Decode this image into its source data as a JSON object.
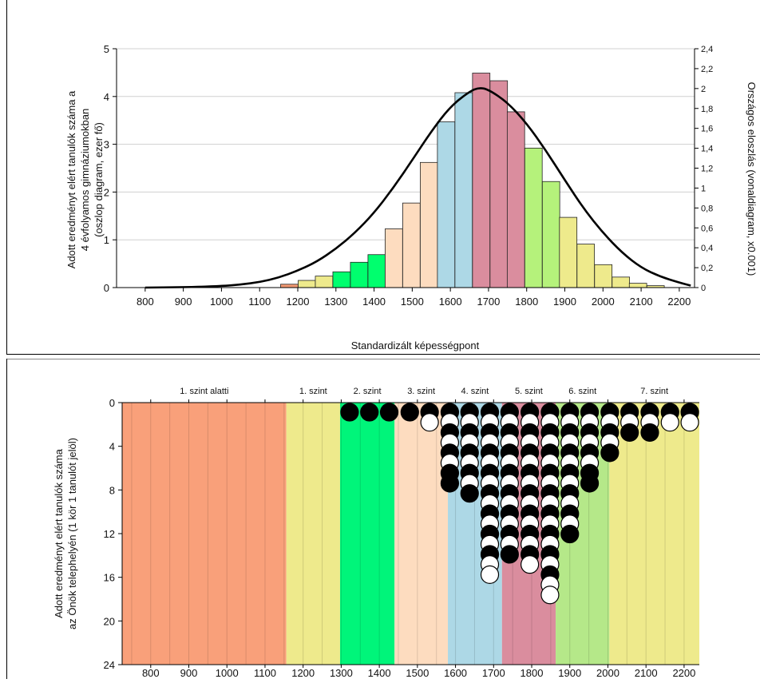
{
  "chart_data": [
    {
      "type": "bar",
      "chart_role": "histogram-with-line",
      "xlabel": "Standardizált képességpont",
      "ylabel_lines": [
        "Adott eredményt elért tanulók száma a",
        "4 évfolyamos gimnáziumokban",
        "(oszlop diagram, ezer fő)"
      ],
      "y2label": "Országos eloszlás (vonaldiagram, x0.001)",
      "xlim": [
        725,
        2240
      ],
      "ylim": [
        0,
        5
      ],
      "y2lim": [
        0,
        2.4
      ],
      "x_ticks": [
        800,
        900,
        1000,
        1100,
        1200,
        1300,
        1400,
        1500,
        1600,
        1700,
        1800,
        1900,
        2000,
        2100,
        2200
      ],
      "y_ticks": [
        "0",
        "1",
        "2",
        "3",
        "4",
        "5"
      ],
      "y2_ticks": [
        "0",
        "0,2",
        "0,4",
        "0,6",
        "0,8",
        "1",
        "1,2",
        "1,4",
        "1,6",
        "1,8",
        "2",
        "2,2",
        "2,4"
      ],
      "bin_width": 45.7,
      "bars": [
        {
          "x": 1155,
          "value": 0.07,
          "color": "#f39a73"
        },
        {
          "x": 1201,
          "value": 0.15,
          "color": "#eeea8c"
        },
        {
          "x": 1246,
          "value": 0.24,
          "color": "#eeea8c"
        },
        {
          "x": 1292,
          "value": 0.33,
          "color": "#00ff6e"
        },
        {
          "x": 1338,
          "value": 0.53,
          "color": "#00ff6e"
        },
        {
          "x": 1384,
          "value": 0.69,
          "color": "#00ff6e"
        },
        {
          "x": 1429,
          "value": 1.23,
          "color": "#fddcbf"
        },
        {
          "x": 1475,
          "value": 1.77,
          "color": "#fddcbf"
        },
        {
          "x": 1521,
          "value": 2.62,
          "color": "#fddcbf"
        },
        {
          "x": 1566,
          "value": 3.47,
          "color": "#add8e6"
        },
        {
          "x": 1612,
          "value": 4.08,
          "color": "#add8e6"
        },
        {
          "x": 1658,
          "value": 4.49,
          "color": "#da8d9e"
        },
        {
          "x": 1704,
          "value": 4.33,
          "color": "#da8d9e"
        },
        {
          "x": 1749,
          "value": 3.68,
          "color": "#da8d9e"
        },
        {
          "x": 1795,
          "value": 2.92,
          "color": "#b5f27b"
        },
        {
          "x": 1841,
          "value": 2.22,
          "color": "#b5f27b"
        },
        {
          "x": 1886,
          "value": 1.47,
          "color": "#eeea8c"
        },
        {
          "x": 1932,
          "value": 0.91,
          "color": "#eeea8c"
        },
        {
          "x": 1978,
          "value": 0.48,
          "color": "#eeea8c"
        },
        {
          "x": 2024,
          "value": 0.22,
          "color": "#eeea8c"
        },
        {
          "x": 2069,
          "value": 0.09,
          "color": "#eeea8c"
        },
        {
          "x": 2115,
          "value": 0.04,
          "color": "#eeea8c"
        }
      ],
      "line": {
        "axis": "right",
        "x": [
          800,
          900,
          1000,
          1050,
          1100,
          1150,
          1200,
          1250,
          1300,
          1350,
          1400,
          1450,
          1500,
          1550,
          1600,
          1650,
          1675,
          1700,
          1750,
          1800,
          1850,
          1900,
          1950,
          2000,
          2050,
          2100,
          2150,
          2200,
          2230
        ],
        "y": [
          0.0,
          0.003,
          0.015,
          0.03,
          0.055,
          0.1,
          0.17,
          0.26,
          0.39,
          0.55,
          0.75,
          1.0,
          1.28,
          1.57,
          1.82,
          1.97,
          2.01,
          1.99,
          1.86,
          1.65,
          1.38,
          1.08,
          0.79,
          0.55,
          0.35,
          0.2,
          0.11,
          0.05,
          0.02
        ],
        "color": "#000000"
      }
    },
    {
      "type": "scatter",
      "chart_role": "dot-plot",
      "ylabel_lines": [
        "Adott eredményt elért tanulók száma",
        "az Önök telephelyén (1 kör 1 tanulót jelöl)"
      ],
      "xlim": [
        725,
        2240
      ],
      "ylim": [
        0,
        24
      ],
      "y_inverted": true,
      "x_ticks": [
        800,
        900,
        1000,
        1100,
        1200,
        1300,
        1400,
        1500,
        1600,
        1700,
        1800,
        1900,
        2000,
        2100,
        2200
      ],
      "y_ticks": [
        "0",
        "4",
        "8",
        "12",
        "16",
        "20",
        "24"
      ],
      "bands": [
        {
          "label": "1. szint alatti",
          "from": 725,
          "to": 1156,
          "color": "#f9a07a"
        },
        {
          "label": "1. szint",
          "from": 1156,
          "to": 1297,
          "color": "#eeea8c"
        },
        {
          "label": "2. szint",
          "from": 1297,
          "to": 1440,
          "color": "#00f57a"
        },
        {
          "label": "3. szint",
          "from": 1440,
          "to": 1580,
          "color": "#fddcbf"
        },
        {
          "label": "4. szint",
          "from": 1580,
          "to": 1722,
          "color": "#add8e6"
        },
        {
          "label": "5. szint",
          "from": 1722,
          "to": 1863,
          "color": "#da8d9e"
        },
        {
          "label": "6. szint",
          "from": 1863,
          "to": 2004,
          "color": "#b5e889"
        },
        {
          "label": "7. szint",
          "from": 2004,
          "to": 2240,
          "color": "#eeea8c"
        }
      ],
      "stack_step": 1.0,
      "columns": [
        {
          "x": 1322,
          "dots": "b"
        },
        {
          "x": 1374,
          "dots": "b"
        },
        {
          "x": 1426,
          "dots": "b"
        },
        {
          "x": 1480,
          "dots": "b"
        },
        {
          "x": 1532,
          "dots": "bw"
        },
        {
          "x": 1585,
          "dots": "bwbwbwbb"
        },
        {
          "x": 1637,
          "dots": "bwbwbwbwb"
        },
        {
          "x": 1690,
          "dots": "bwbwbwbwbwbwbwbww"
        },
        {
          "x": 1742,
          "dots": "bwbwbwbwbwbwbwb"
        },
        {
          "x": 1795,
          "dots": "bwbwbwbwbwbwbwbw"
        },
        {
          "x": 1848,
          "dots": "bwbwbwbwbwbwbwbwbww"
        },
        {
          "x": 1900,
          "dots": "bwbwbwbwbwbwb"
        },
        {
          "x": 1952,
          "dots": "bwbwbwbb"
        },
        {
          "x": 2005,
          "dots": "bwbwb"
        },
        {
          "x": 2057,
          "dots": "bwb"
        },
        {
          "x": 2110,
          "dots": "bwb"
        },
        {
          "x": 2163,
          "dots": "bw"
        },
        {
          "x": 2215,
          "dots": "bw"
        }
      ]
    }
  ]
}
